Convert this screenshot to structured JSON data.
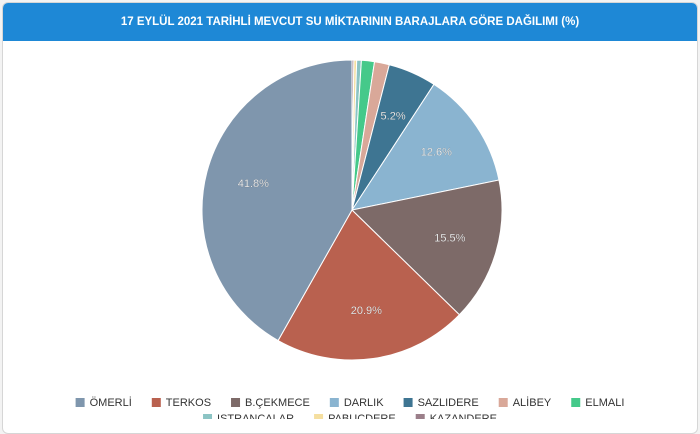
{
  "chart_data": {
    "type": "pie",
    "title": "17 EYLÜL 2021 TARİHLİ MEVCUT SU MİKTARININ BARAJLARA GÖRE DAĞILIMI (%)",
    "categories": [
      "ÖMERLİ",
      "TERKOS",
      "B.ÇEKMECE",
      "DARLIK",
      "SAZLIDERE",
      "ALİBEY",
      "ELMALI",
      "ISTRANCALAR",
      "PABUÇDERE",
      "KAZANDERE"
    ],
    "values": [
      41.8,
      20.9,
      15.5,
      12.6,
      5.2,
      1.6,
      1.4,
      0.5,
      0.3,
      0.2
    ],
    "value_labels": [
      "41.8%",
      "20.9%",
      "15.5%",
      "12.6%",
      "5.2%",
      null,
      null,
      null,
      null,
      null
    ],
    "colors": [
      "#7f96ad",
      "#b9614f",
      "#7d6a68",
      "#8ab4d0",
      "#3e7592",
      "#d9a899",
      "#45c98a",
      "#8cc4c4",
      "#f5dfa0",
      "#9b7f8a"
    ]
  }
}
